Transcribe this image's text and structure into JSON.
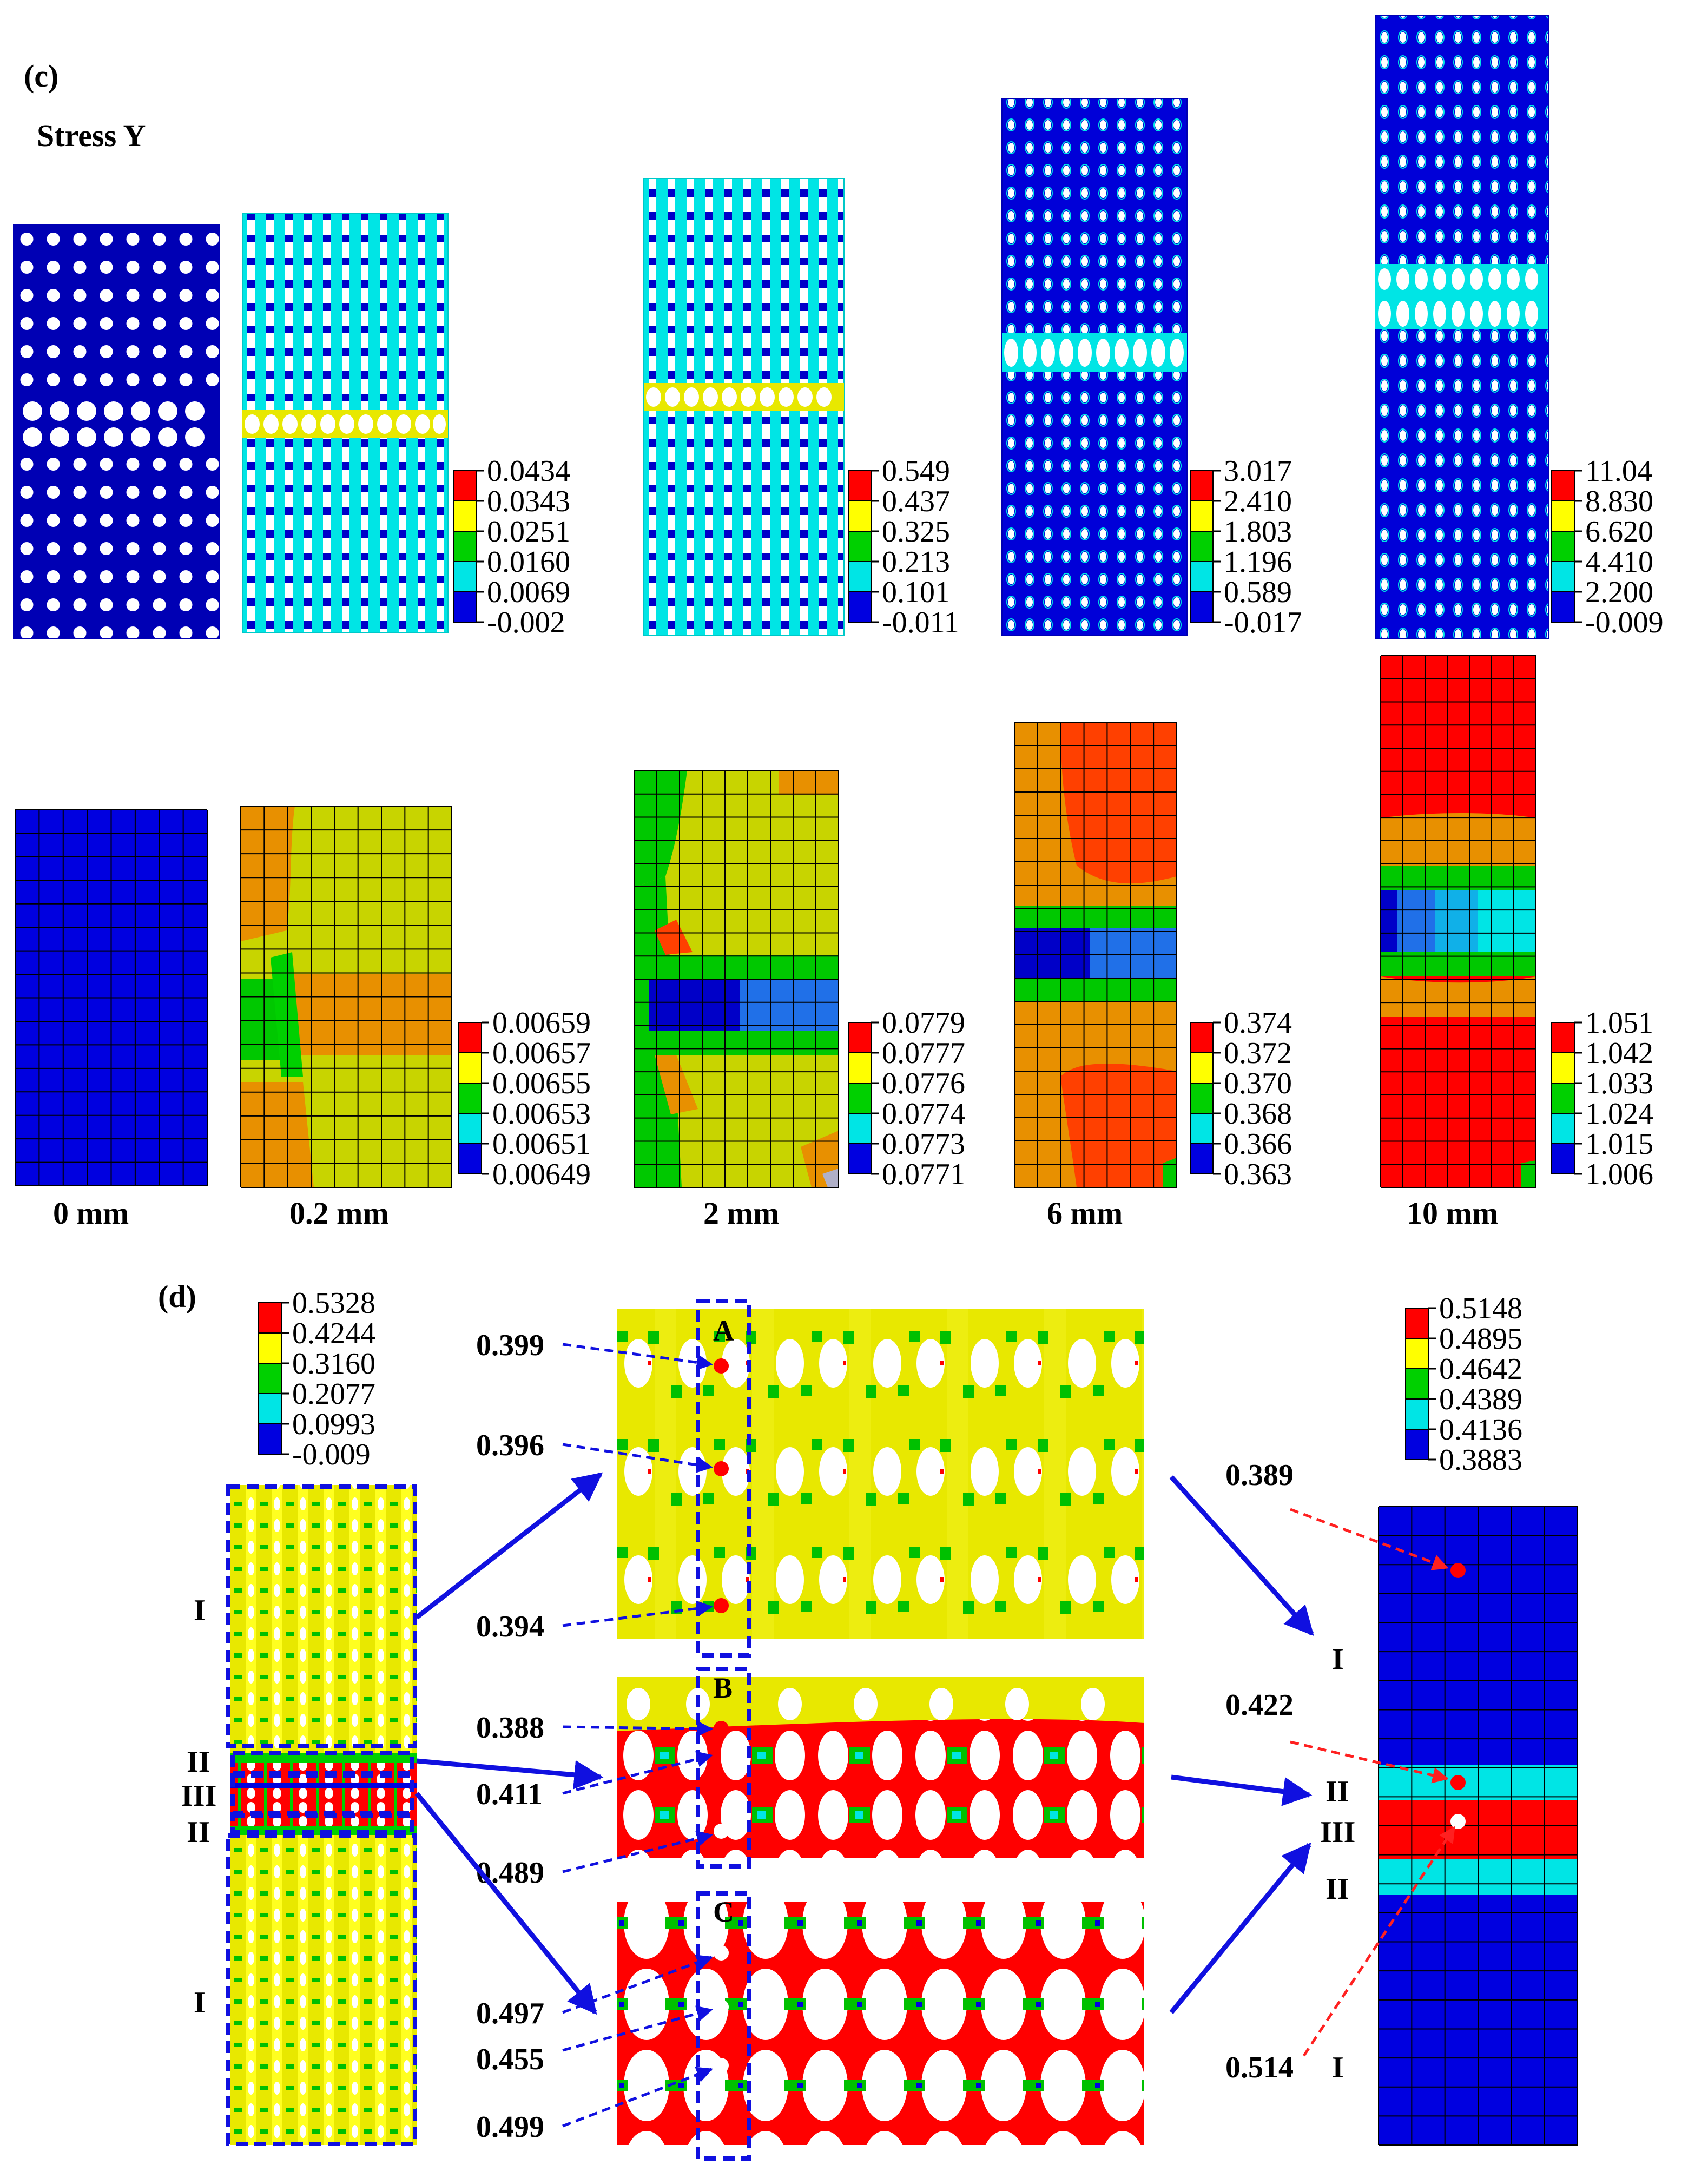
{
  "colors": {
    "red": "#ff0000",
    "orange": "#ff8c00",
    "yellow": "#ffff00",
    "green": "#00d000",
    "cyan": "#00e5e5",
    "blue": "#0000e0",
    "navy": "#0000b4",
    "white": "#ffffff",
    "mesh_line": "#000000",
    "dash_blue": "#1010e0",
    "arrow_red": "#ff2020"
  },
  "panel_c": {
    "label": "(c)",
    "title": "Stress Y",
    "displacements": [
      "0 mm",
      "0.2 mm",
      "2 mm",
      "6 mm",
      "10 mm"
    ],
    "top_legends": [
      [
        "0.0434",
        "0.0343",
        "0.0251",
        "0.0160",
        "0.0069",
        "-0.002"
      ],
      [
        "0.549",
        "0.437",
        "0.325",
        "0.213",
        "0.101",
        "-0.011"
      ],
      [
        "3.017",
        "2.410",
        "1.803",
        "1.196",
        "0.589",
        "-0.017"
      ],
      [
        "11.04",
        "8.830",
        "6.620",
        "4.410",
        "2.200",
        "-0.009"
      ]
    ],
    "bottom_legends": [
      [
        "0.00659",
        "0.00657",
        "0.00655",
        "0.00653",
        "0.00651",
        "0.00649"
      ],
      [
        "0.0779",
        "0.0777",
        "0.0776",
        "0.0774",
        "0.0773",
        "0.0771"
      ],
      [
        "0.374",
        "0.372",
        "0.370",
        "0.368",
        "0.366",
        "0.363"
      ],
      [
        "1.051",
        "1.042",
        "1.033",
        "1.024",
        "1.015",
        "1.006"
      ]
    ]
  },
  "panel_d": {
    "label": "(d)",
    "legend_left": [
      "0.5328",
      "0.4244",
      "0.3160",
      "0.2077",
      "0.0993",
      "-0.009"
    ],
    "legend_right": [
      "0.5148",
      "0.4895",
      "0.4642",
      "0.4389",
      "0.4136",
      "0.3883"
    ],
    "zones": {
      "one": "I",
      "two": "II",
      "three": "III"
    },
    "zoom_letters": [
      "A",
      "B",
      "C"
    ],
    "point_values": {
      "a1": "0.399",
      "a2": "0.396",
      "a3": "0.394",
      "b1": "0.388",
      "b2": "0.411",
      "b3": "0.489",
      "c1": "0.497",
      "c2": "0.455",
      "c3": "0.499",
      "r1": "0.389",
      "r2": "0.422",
      "r3": "0.514"
    }
  }
}
